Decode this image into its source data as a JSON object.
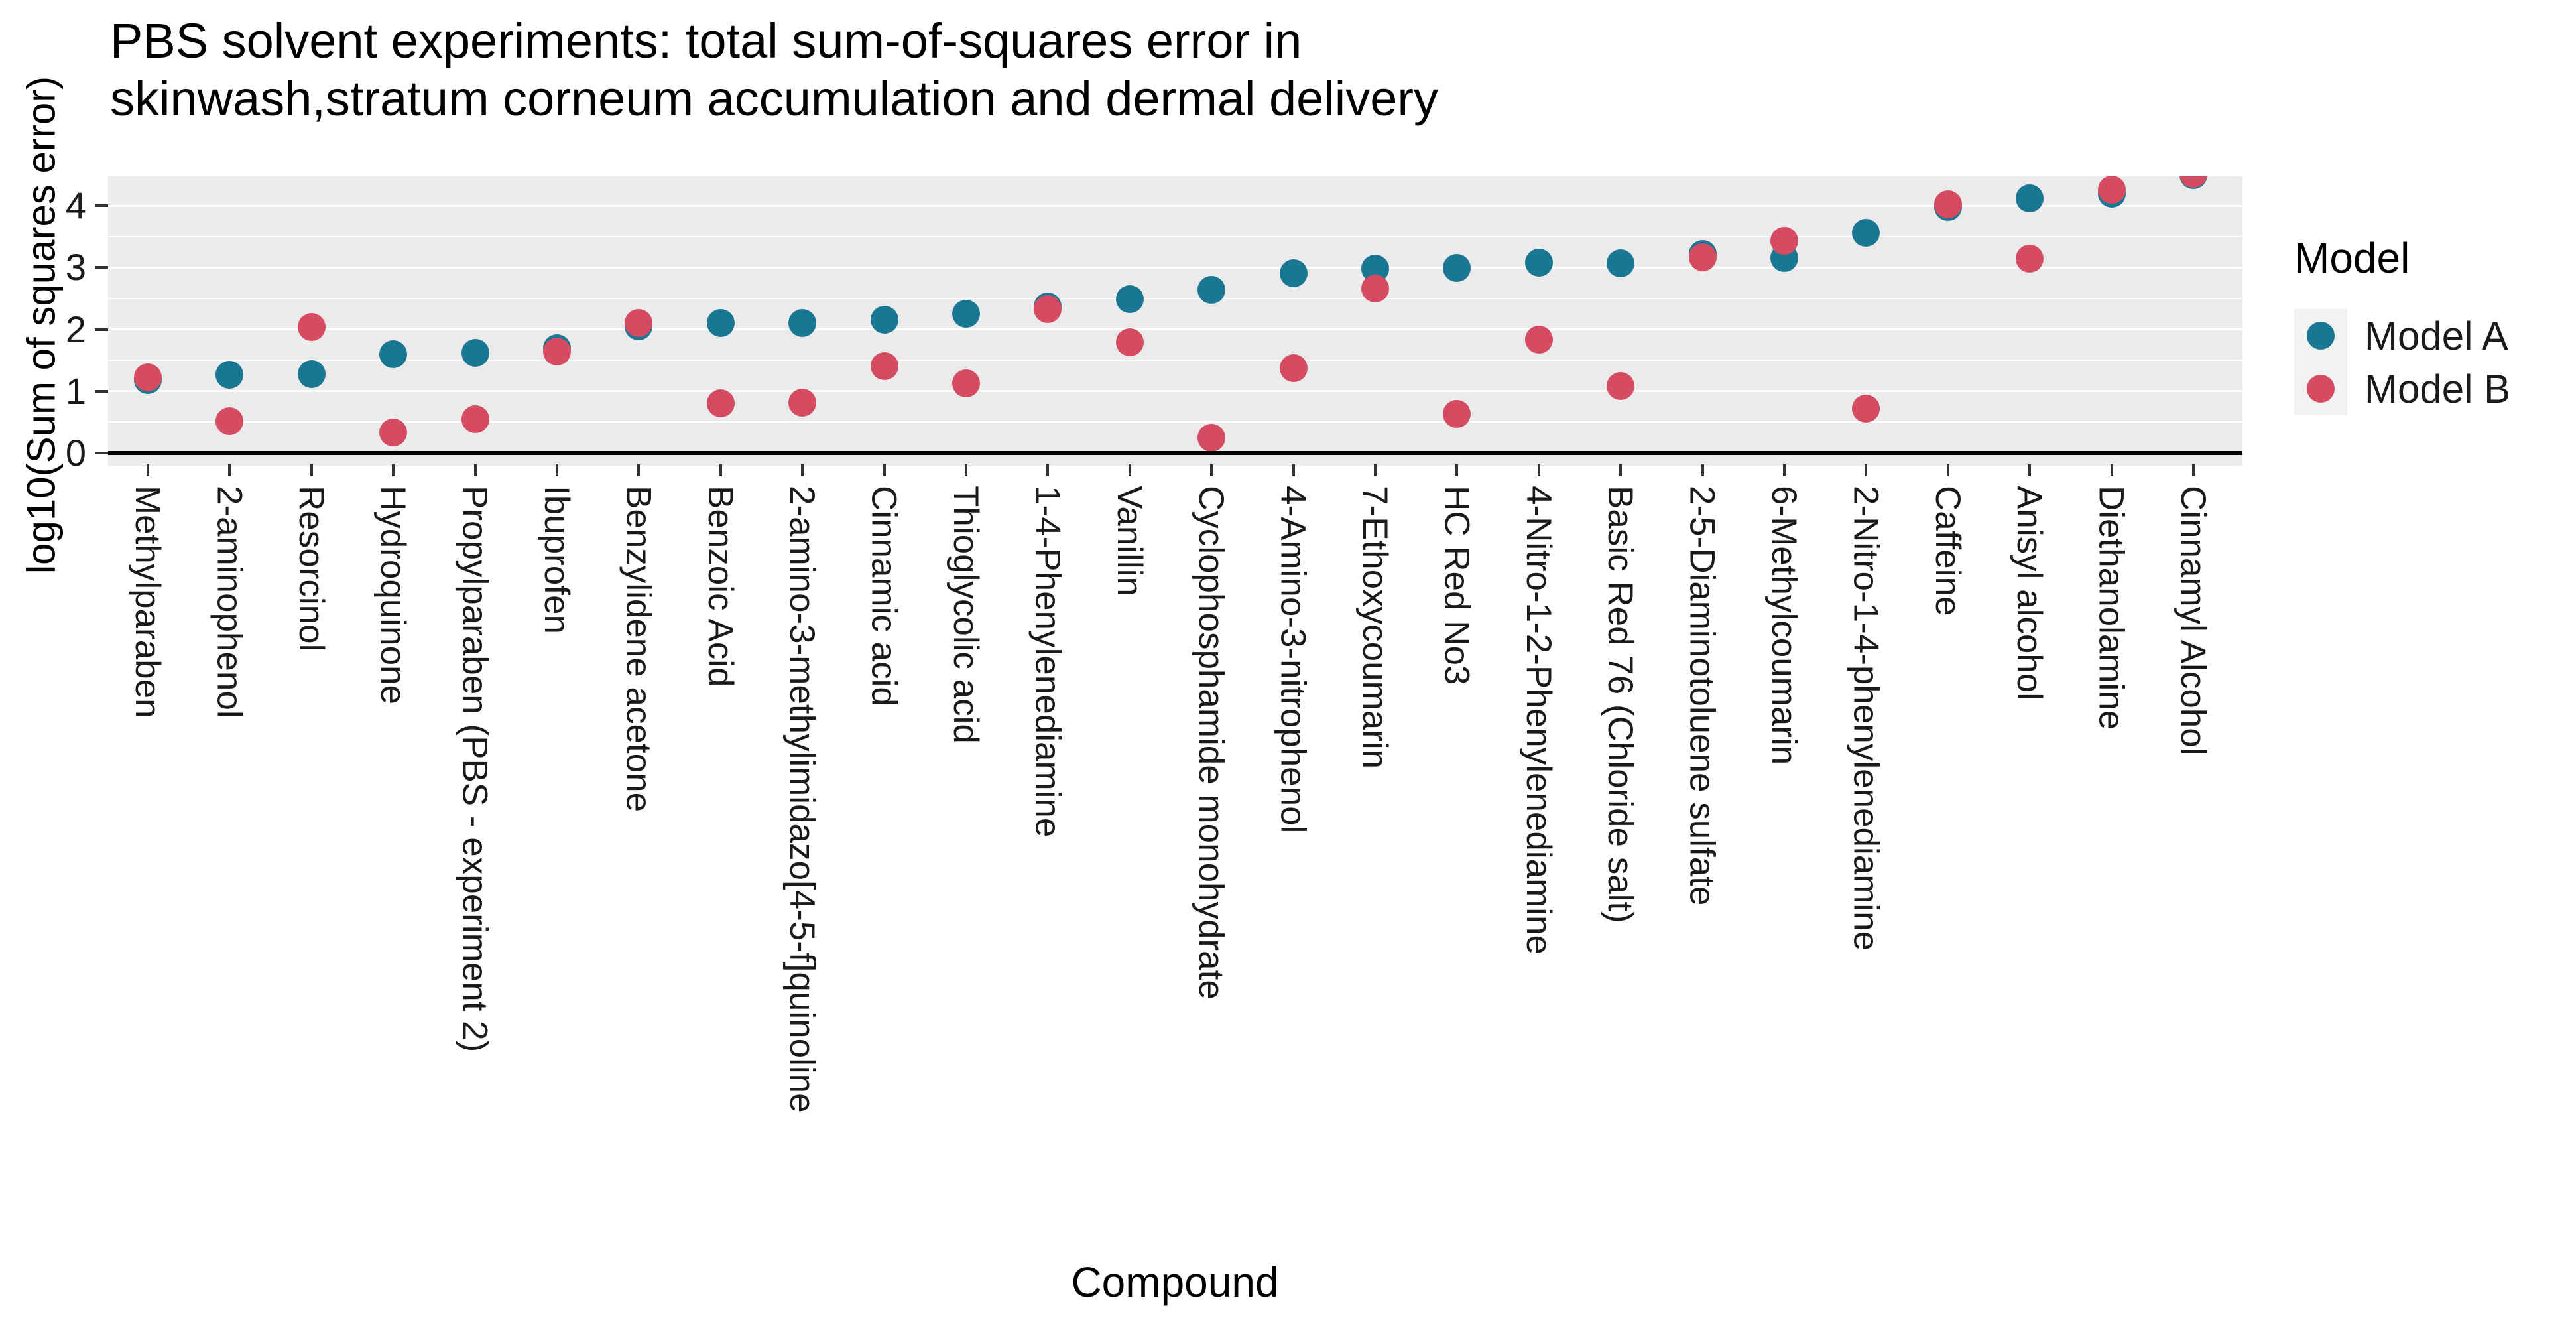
{
  "title": "PBS solvent experiments: total sum-of-squares error in\nskinwash,stratum corneum accumulation and dermal delivery",
  "colors": {
    "panel_background": "#ebebeb",
    "gridline": "#ffffff",
    "axis_line": "#000000",
    "tick": "#333333",
    "model_a": "#1a7794",
    "model_b": "#d54b62",
    "legend_key_background": "#f2f2f2"
  },
  "chart_data": {
    "type": "scatter",
    "title": "PBS solvent experiments: total sum-of-squares error in\nskinwash,stratum corneum accumulation and dermal delivery",
    "xlabel": "Compound",
    "ylabel": "log10(Sum of squares error)",
    "y_ticks": [
      0,
      1,
      2,
      3,
      4
    ],
    "y_minor_ticks": [
      0.5,
      1.5,
      2.5,
      3.5,
      4.5
    ],
    "ylim": [
      -0.18,
      4.48
    ],
    "grid": "major and minor horizontal white lines on gray panel",
    "legend": {
      "title": "Model",
      "position": "right",
      "entries": [
        {
          "name": "Model A",
          "color": "#1a7794"
        },
        {
          "name": "Model B",
          "color": "#d54b62"
        }
      ]
    },
    "categories": [
      "Methylparaben",
      "2-aminophenol",
      "Resorcinol",
      "Hydroquinone",
      "Propylparaben (PBS - experiment 2)",
      "Ibuprofen",
      "Benzylidene acetone",
      "Benzoic Acid",
      "2-amino-3-methylimidazo[4-5-f]quinoline",
      "Cinnamic acid",
      "Thioglycolic acid",
      "1-4-Phenylenediamine",
      "Vanillin",
      "Cyclophosphamide monohydrate",
      "4-Amino-3-nitrophenol",
      "7-Ethoxycoumarin",
      "HC Red No3",
      "4-Nitro-1-2-Phenylenediamine",
      "Basic Red 76 (Chloride salt)",
      "2-5-Diaminotoluene sulfate",
      "6-Methylcoumarin",
      "2-Nitro-1-4-phenylenediamine",
      "Caffeine",
      "Anisyl alcohol",
      "Diethanolamine",
      "Cinnamyl Alcohol"
    ],
    "series": [
      {
        "name": "Model A",
        "color": "#1a7794",
        "values": [
          1.18,
          1.27,
          1.28,
          1.6,
          1.62,
          1.7,
          2.05,
          2.1,
          2.1,
          2.16,
          2.25,
          2.37,
          2.49,
          2.64,
          2.91,
          2.98,
          2.99,
          3.08,
          3.07,
          3.22,
          3.15,
          3.56,
          3.98,
          4.12,
          4.2,
          4.5
        ]
      },
      {
        "name": "Model B",
        "color": "#d54b62",
        "values": [
          1.22,
          0.52,
          2.04,
          0.33,
          0.55,
          1.64,
          2.1,
          0.81,
          0.82,
          1.41,
          1.13,
          2.33,
          1.79,
          0.25,
          1.37,
          2.66,
          0.63,
          1.83,
          1.08,
          3.17,
          3.43,
          0.72,
          4.02,
          3.14,
          4.26,
          4.52
        ]
      }
    ]
  }
}
